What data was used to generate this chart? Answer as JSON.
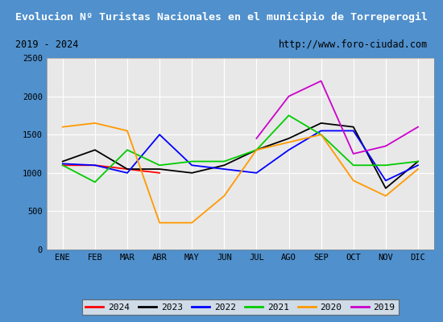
{
  "title": "Evolucion Nº Turistas Nacionales en el municipio de Torreperogil",
  "subtitle_left": "2019 - 2024",
  "subtitle_right": "http://www.foro-ciudad.com",
  "months": [
    "ENE",
    "FEB",
    "MAR",
    "ABR",
    "MAY",
    "JUN",
    "JUL",
    "AGO",
    "SEP",
    "OCT",
    "NOV",
    "DIC"
  ],
  "ylim": [
    0,
    2500
  ],
  "yticks": [
    0,
    500,
    1000,
    1500,
    2000,
    2500
  ],
  "series": {
    "2024": {
      "color": "#ff0000",
      "values": [
        1100,
        1100,
        1050,
        1000,
        null,
        null,
        null,
        null,
        null,
        null,
        null,
        null
      ]
    },
    "2023": {
      "color": "#000000",
      "values": [
        1150,
        1300,
        1050,
        1050,
        1000,
        1100,
        1300,
        1450,
        1650,
        1600,
        800,
        1150
      ]
    },
    "2022": {
      "color": "#0000ff",
      "values": [
        1120,
        1100,
        1000,
        1500,
        1100,
        1050,
        1000,
        1300,
        1550,
        1550,
        900,
        1100
      ]
    },
    "2021": {
      "color": "#00cc00",
      "values": [
        1100,
        880,
        1300,
        1100,
        1150,
        1150,
        1300,
        1750,
        1500,
        1100,
        1100,
        1150
      ]
    },
    "2020": {
      "color": "#ff9900",
      "values": [
        1600,
        1650,
        1550,
        350,
        350,
        700,
        1300,
        1400,
        1500,
        900,
        700,
        1050
      ]
    },
    "2019": {
      "color": "#cc00cc",
      "values": [
        null,
        null,
        null,
        null,
        null,
        null,
        1450,
        2000,
        2200,
        1250,
        1350,
        1600
      ]
    }
  },
  "title_bg": "#4080c0",
  "title_color": "#ffffff",
  "subtitle_bg": "#d0d0d0",
  "plot_bg": "#e8e8e8",
  "outer_bg": "#5090cc",
  "grid_color": "#ffffff",
  "border_color": "#4080c0",
  "figsize": [
    5.5,
    4.0
  ],
  "dpi": 100
}
